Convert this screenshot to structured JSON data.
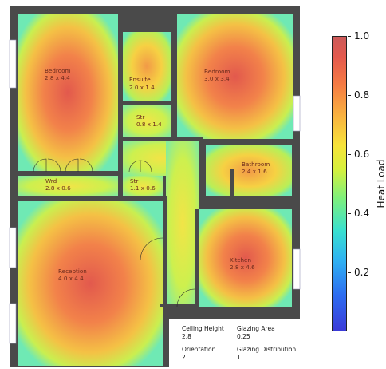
{
  "rooms": [
    {
      "name": "Bedroom",
      "dims": "2.8 x 4.4"
    },
    {
      "name": "Ensuite",
      "dims": "2.0 x 1.4"
    },
    {
      "name": "Bedroom",
      "dims": "3.0 x 3.4"
    },
    {
      "name": "Str",
      "dims": "0.8 x 1.4"
    },
    {
      "name": "Bathroom",
      "dims": "2.4 x 1.6"
    },
    {
      "name": "Wrd",
      "dims": "2.8 x 0.6"
    },
    {
      "name": "Str",
      "dims": "1.1 x 0.6"
    },
    {
      "name": "Reception",
      "dims": "4.0 x 4.4"
    },
    {
      "name": "Kitchen",
      "dims": "2.8 x 4.6"
    }
  ],
  "info": {
    "ceiling_height_label": "Ceiling Height",
    "ceiling_height": "2.8",
    "glazing_area_label": "Glazing Area",
    "glazing_area": "0.25",
    "orientation_label": "Orientation",
    "orientation": "2",
    "glazing_distribution_label": "Glazing Distribution",
    "glazing_distribution": "1"
  },
  "colorbar": {
    "label": "Heat Load",
    "min": 0.0,
    "max": 1.0,
    "ticks": [
      "0.2",
      "0.4",
      "0.6",
      "0.8",
      "1.0"
    ],
    "colors": {
      "low": "#3b3bd8",
      "mid": "#d6f03c",
      "high": "#cc5a5a"
    }
  }
}
